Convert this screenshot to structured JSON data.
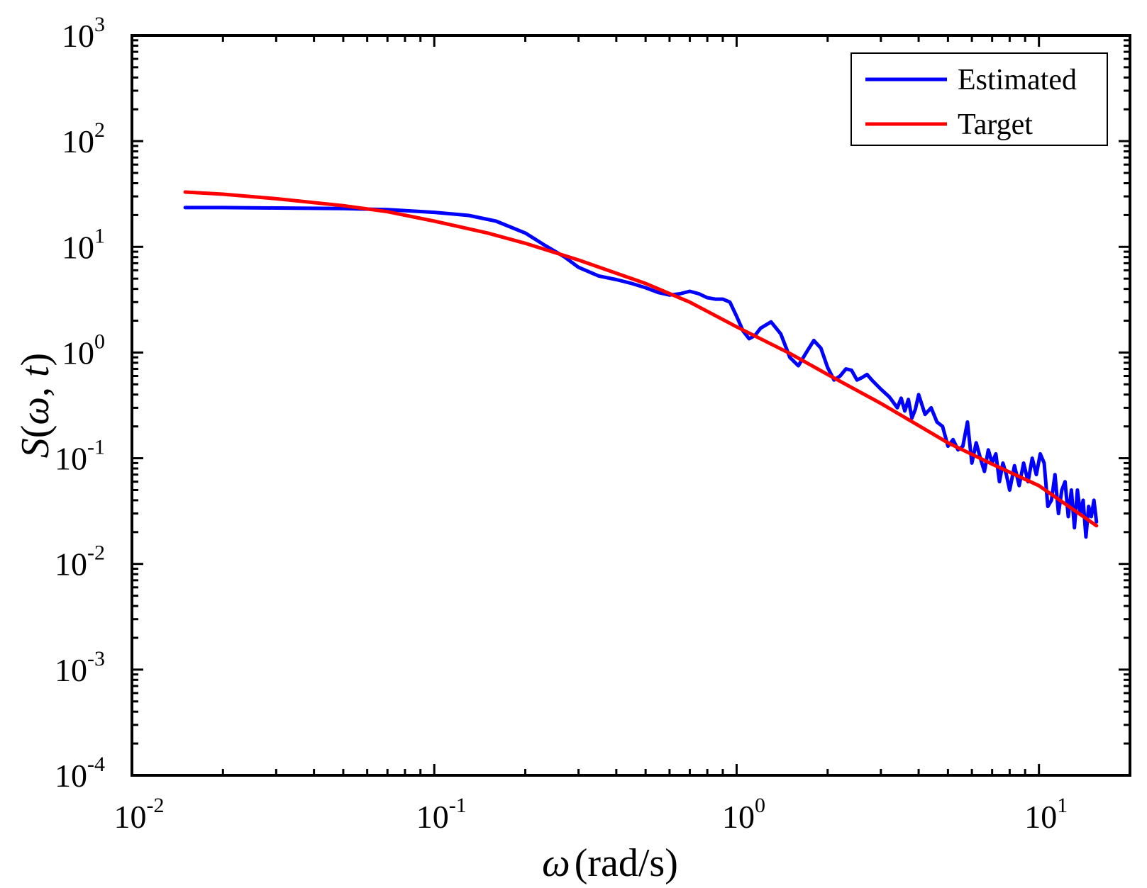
{
  "chart_data": {
    "type": "line",
    "title": "",
    "xscale": "log",
    "yscale": "log",
    "xlim": [
      0.01,
      20
    ],
    "ylim": [
      0.0001,
      1000
    ],
    "x_ticks": [
      {
        "value": 0.01,
        "base": "10",
        "exp": "-2"
      },
      {
        "value": 0.1,
        "base": "10",
        "exp": "-1"
      },
      {
        "value": 1,
        "base": "10",
        "exp": "0"
      },
      {
        "value": 10,
        "base": "10",
        "exp": "1"
      }
    ],
    "y_ticks": [
      {
        "value": 0.0001,
        "base": "10",
        "exp": "-4"
      },
      {
        "value": 0.001,
        "base": "10",
        "exp": "-3"
      },
      {
        "value": 0.01,
        "base": "10",
        "exp": "-2"
      },
      {
        "value": 0.1,
        "base": "10",
        "exp": "-1"
      },
      {
        "value": 1,
        "base": "10",
        "exp": "0"
      },
      {
        "value": 10,
        "base": "10",
        "exp": "1"
      },
      {
        "value": 100,
        "base": "10",
        "exp": "2"
      },
      {
        "value": 1000,
        "base": "10",
        "exp": "3"
      }
    ],
    "xlabel": {
      "symbol": "ω",
      "unit": "(rad/s)"
    },
    "ylabel": {
      "func": "S",
      "open": "(",
      "arg1": "ω",
      "sep": ", ",
      "arg2": "t",
      "close": ")"
    },
    "legend_position": "top-right",
    "series": [
      {
        "name": "Estimated",
        "color": "#0000ff",
        "x": [
          0.015,
          0.02,
          0.03,
          0.05,
          0.07,
          0.1,
          0.13,
          0.16,
          0.2,
          0.23,
          0.27,
          0.3,
          0.35,
          0.4,
          0.45,
          0.5,
          0.55,
          0.6,
          0.65,
          0.7,
          0.75,
          0.8,
          0.85,
          0.9,
          0.95,
          1.0,
          1.05,
          1.1,
          1.15,
          1.2,
          1.3,
          1.4,
          1.5,
          1.6,
          1.7,
          1.8,
          1.9,
          2.0,
          2.1,
          2.2,
          2.3,
          2.4,
          2.5,
          2.6,
          2.7,
          2.8,
          3.0,
          3.2,
          3.4,
          3.5,
          3.6,
          3.7,
          3.8,
          3.9,
          4.0,
          4.2,
          4.4,
          4.6,
          4.8,
          5.0,
          5.2,
          5.4,
          5.6,
          5.8,
          6.0,
          6.2,
          6.4,
          6.6,
          6.8,
          7.0,
          7.2,
          7.4,
          7.6,
          7.8,
          8.0,
          8.3,
          8.6,
          8.9,
          9.2,
          9.5,
          9.8,
          10.1,
          10.4,
          10.7,
          11.0,
          11.3,
          11.6,
          11.9,
          12.2,
          12.5,
          12.8,
          13.1,
          13.4,
          13.7,
          14.0,
          14.3,
          14.6,
          14.9,
          15.2,
          15.5
        ],
        "y": [
          23.5,
          23.5,
          23.3,
          23.0,
          22.5,
          21.2,
          19.8,
          17.5,
          13.5,
          10.5,
          8.0,
          6.4,
          5.3,
          4.9,
          4.5,
          4.1,
          3.7,
          3.5,
          3.6,
          3.8,
          3.6,
          3.3,
          3.2,
          3.2,
          3.0,
          2.2,
          1.6,
          1.35,
          1.45,
          1.7,
          1.95,
          1.5,
          0.9,
          0.75,
          1.0,
          1.3,
          1.1,
          0.72,
          0.55,
          0.6,
          0.7,
          0.68,
          0.55,
          0.58,
          0.62,
          0.55,
          0.45,
          0.38,
          0.3,
          0.37,
          0.28,
          0.36,
          0.24,
          0.29,
          0.4,
          0.26,
          0.3,
          0.22,
          0.2,
          0.13,
          0.15,
          0.12,
          0.13,
          0.22,
          0.09,
          0.14,
          0.1,
          0.075,
          0.12,
          0.09,
          0.11,
          0.06,
          0.09,
          0.07,
          0.05,
          0.085,
          0.055,
          0.09,
          0.06,
          0.1,
          0.07,
          0.11,
          0.09,
          0.035,
          0.04,
          0.07,
          0.03,
          0.05,
          0.06,
          0.028,
          0.05,
          0.022,
          0.05,
          0.03,
          0.04,
          0.018,
          0.035,
          0.028,
          0.04,
          0.025
        ]
      },
      {
        "name": "Target",
        "color": "#ff0000",
        "x": [
          0.015,
          0.02,
          0.03,
          0.05,
          0.07,
          0.1,
          0.15,
          0.2,
          0.3,
          0.5,
          0.7,
          1.0,
          1.5,
          2.0,
          3.0,
          5.0,
          7.0,
          10.0,
          15.5
        ],
        "y": [
          33,
          31.5,
          28.5,
          24.5,
          21.5,
          17.5,
          13.5,
          10.8,
          7.5,
          4.5,
          3.0,
          1.75,
          0.98,
          0.62,
          0.33,
          0.14,
          0.088,
          0.055,
          0.023
        ]
      }
    ]
  }
}
